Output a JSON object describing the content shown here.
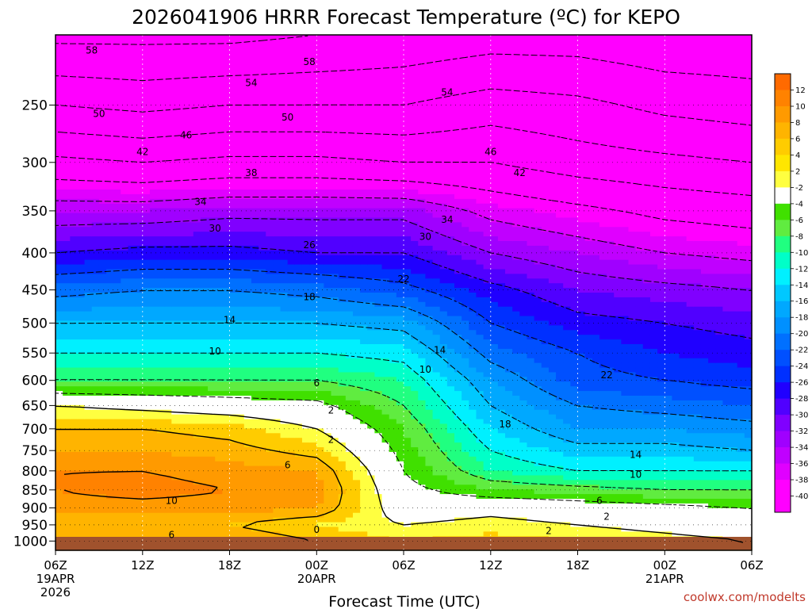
{
  "chart_data": {
    "type": "heatmap",
    "title": "2026041906 HRRR Forecast Temperature (ºC) for KEPO",
    "xlabel": "Forecast Time (UTC)",
    "ylabel": "",
    "credit": "coolwx.com/modelts",
    "y_scale": "pressure (hPa), inverted",
    "ylim": [
      1030,
      200
    ],
    "y_ticks": [
      250,
      300,
      350,
      400,
      450,
      500,
      550,
      600,
      650,
      700,
      750,
      800,
      850,
      900,
      950,
      1000
    ],
    "x_range_hours": [
      0,
      48
    ],
    "x_ticks": [
      {
        "hour": 0,
        "label": "06Z",
        "date": "19APR",
        "year": "2026"
      },
      {
        "hour": 6,
        "label": "12Z",
        "date": "",
        "year": ""
      },
      {
        "hour": 12,
        "label": "18Z",
        "date": "",
        "year": ""
      },
      {
        "hour": 18,
        "label": "00Z",
        "date": "20APR",
        "year": ""
      },
      {
        "hour": 24,
        "label": "06Z",
        "date": "",
        "year": ""
      },
      {
        "hour": 30,
        "label": "12Z",
        "date": "",
        "year": ""
      },
      {
        "hour": 36,
        "label": "18Z",
        "date": "",
        "year": ""
      },
      {
        "hour": 42,
        "label": "00Z",
        "date": "21APR",
        "year": ""
      },
      {
        "hour": 48,
        "label": "06Z",
        "date": "",
        "year": ""
      }
    ],
    "colorbar": {
      "labels": [
        "12",
        "10",
        "8",
        "6",
        "4",
        "2",
        "-2",
        "-4",
        "-6",
        "-8",
        "-10",
        "-12",
        "-14",
        "-16",
        "-18",
        "-20",
        "-22",
        "-24",
        "-26",
        "-28",
        "-30",
        "-32",
        "-34",
        "-36",
        "-38",
        "-40"
      ],
      "colors": [
        "#ff6a00",
        "#ff8200",
        "#ff9a00",
        "#ffb400",
        "#ffcc00",
        "#ffe600",
        "#ffff40",
        "#ffffff",
        "#40e000",
        "#60ec40",
        "#20ff80",
        "#00ffc8",
        "#00f0ff",
        "#00c8ff",
        "#00a8ff",
        "#0090ff",
        "#0070ff",
        "#0050ff",
        "#0030ff",
        "#2000ff",
        "#5000ff",
        "#8000ff",
        "#a000ff",
        "#c000ff",
        "#e000ff",
        "#ff00ff",
        "#ff00ff"
      ]
    },
    "temperature_isotherms": [
      {
        "p": 220,
        "points": [
          [
            0,
            -58
          ],
          [
            12,
            -58
          ],
          [
            24,
            -57
          ],
          [
            36,
            -57
          ],
          [
            48,
            -56
          ]
        ]
      },
      {
        "hour_profiles": [
          {
            "hour": 0,
            "t": [
              [
                200,
                -59
              ],
              [
                250,
                -50
              ],
              [
                300,
                -41
              ],
              [
                350,
                -32
              ],
              [
                400,
                -26
              ],
              [
                450,
                -19
              ],
              [
                500,
                -14
              ],
              [
                550,
                -10
              ],
              [
                600,
                -6
              ],
              [
                650,
                2
              ],
              [
                700,
                6
              ],
              [
                750,
                8
              ],
              [
                800,
                10
              ],
              [
                850,
                10
              ],
              [
                900,
                9
              ],
              [
                950,
                6
              ],
              [
                1000,
                8
              ]
            ]
          },
          {
            "hour": 6,
            "t": [
              [
                200,
                -59
              ],
              [
                250,
                -51
              ],
              [
                300,
                -42
              ],
              [
                350,
                -32
              ],
              [
                400,
                -25
              ],
              [
                450,
                -18
              ],
              [
                500,
                -14
              ],
              [
                550,
                -10
              ],
              [
                600,
                -6
              ],
              [
                650,
                1
              ],
              [
                700,
                6
              ],
              [
                750,
                8
              ],
              [
                800,
                10
              ],
              [
                850,
                11
              ],
              [
                900,
                9
              ],
              [
                950,
                6
              ],
              [
                1000,
                8
              ]
            ]
          },
          {
            "hour": 12,
            "t": [
              [
                200,
                -59
              ],
              [
                250,
                -50
              ],
              [
                300,
                -41
              ],
              [
                350,
                -31
              ],
              [
                400,
                -25
              ],
              [
                450,
                -18
              ],
              [
                500,
                -14
              ],
              [
                550,
                -10
              ],
              [
                600,
                -6
              ],
              [
                650,
                0
              ],
              [
                700,
                5
              ],
              [
                750,
                7
              ],
              [
                800,
                9
              ],
              [
                850,
                10
              ],
              [
                900,
                9
              ],
              [
                950,
                6
              ],
              [
                1000,
                8
              ]
            ]
          },
          {
            "hour": 18,
            "t": [
              [
                200,
                -58
              ],
              [
                250,
                -50
              ],
              [
                300,
                -41
              ],
              [
                350,
                -31
              ],
              [
                400,
                -26
              ],
              [
                450,
                -19
              ],
              [
                500,
                -14
              ],
              [
                550,
                -10
              ],
              [
                600,
                -6
              ],
              [
                650,
                -1
              ],
              [
                700,
                2
              ],
              [
                750,
                5
              ],
              [
                800,
                8
              ],
              [
                850,
                9
              ],
              [
                900,
                8
              ],
              [
                950,
                4
              ],
              [
                1000,
                6
              ]
            ]
          },
          {
            "hour": 24,
            "t": [
              [
                200,
                -57
              ],
              [
                250,
                -50
              ],
              [
                300,
                -42
              ],
              [
                350,
                -31
              ],
              [
                400,
                -26
              ],
              [
                450,
                -21
              ],
              [
                500,
                -15
              ],
              [
                550,
                -11
              ],
              [
                600,
                -8
              ],
              [
                650,
                -6
              ],
              [
                700,
                -4
              ],
              [
                750,
                -3
              ],
              [
                800,
                -2
              ],
              [
                850,
                -1
              ],
              [
                900,
                0
              ],
              [
                950,
                2
              ],
              [
                1000,
                4
              ]
            ]
          },
          {
            "hour": 30,
            "t": [
              [
                200,
                -56
              ],
              [
                250,
                -48
              ],
              [
                300,
                -42
              ],
              [
                350,
                -35
              ],
              [
                400,
                -30
              ],
              [
                450,
                -25
              ],
              [
                500,
                -22
              ],
              [
                550,
                -19
              ],
              [
                600,
                -16
              ],
              [
                650,
                -14
              ],
              [
                700,
                -12
              ],
              [
                750,
                -10
              ],
              [
                800,
                -8
              ],
              [
                850,
                -4
              ],
              [
                900,
                1
              ],
              [
                950,
                3
              ],
              [
                1000,
                5
              ]
            ]
          },
          {
            "hour": 36,
            "t": [
              [
                200,
                -56
              ],
              [
                250,
                -49
              ],
              [
                300,
                -44
              ],
              [
                350,
                -37
              ],
              [
                400,
                -32
              ],
              [
                450,
                -28
              ],
              [
                500,
                -25
              ],
              [
                550,
                -22
              ],
              [
                600,
                -21
              ],
              [
                650,
                -18
              ],
              [
                700,
                -16
              ],
              [
                750,
                -13
              ],
              [
                800,
                -10
              ],
              [
                850,
                -5
              ],
              [
                900,
                0
              ],
              [
                950,
                2
              ],
              [
                1000,
                4
              ]
            ]
          },
          {
            "hour": 42,
            "t": [
              [
                200,
                -57
              ],
              [
                250,
                -51
              ],
              [
                300,
                -45
              ],
              [
                350,
                -39
              ],
              [
                400,
                -34
              ],
              [
                450,
                -29
              ],
              [
                500,
                -26
              ],
              [
                550,
                -24
              ],
              [
                600,
                -22
              ],
              [
                650,
                -19
              ],
              [
                700,
                -16
              ],
              [
                750,
                -13
              ],
              [
                800,
                -10
              ],
              [
                850,
                -6
              ],
              [
                900,
                -1
              ],
              [
                950,
                1
              ],
              [
                1000,
                3
              ]
            ]
          },
          {
            "hour": 48,
            "t": [
              [
                200,
                -57
              ],
              [
                250,
                -52
              ],
              [
                300,
                -46
              ],
              [
                350,
                -40
              ],
              [
                400,
                -35
              ],
              [
                450,
                -30
              ],
              [
                500,
                -27
              ],
              [
                550,
                -25
              ],
              [
                600,
                -23
              ],
              [
                650,
                -20
              ],
              [
                700,
                -17
              ],
              [
                750,
                -14
              ],
              [
                800,
                -10
              ],
              [
                850,
                -6
              ],
              [
                900,
                -2
              ],
              [
                950,
                0
              ],
              [
                1000,
                2
              ]
            ]
          }
        ]
      }
    ],
    "contour_labels": [
      {
        "text": "58",
        "hour": 2.5,
        "p": 210
      },
      {
        "text": "58",
        "hour": 17.5,
        "p": 218
      },
      {
        "text": "54",
        "hour": 13.5,
        "p": 233
      },
      {
        "text": "54",
        "hour": 27,
        "p": 240
      },
      {
        "text": "50",
        "hour": 3,
        "p": 257
      },
      {
        "text": "50",
        "hour": 16,
        "p": 260
      },
      {
        "text": "46",
        "hour": 9,
        "p": 275
      },
      {
        "text": "46",
        "hour": 30,
        "p": 290
      },
      {
        "text": "42",
        "hour": 6,
        "p": 290
      },
      {
        "text": "42",
        "hour": 32,
        "p": 310
      },
      {
        "text": "38",
        "hour": 13.5,
        "p": 310
      },
      {
        "text": "34",
        "hour": 10,
        "p": 340
      },
      {
        "text": "34",
        "hour": 27,
        "p": 360
      },
      {
        "text": "30",
        "hour": 11,
        "p": 370
      },
      {
        "text": "30",
        "hour": 25.5,
        "p": 380
      },
      {
        "text": "26",
        "hour": 17.5,
        "p": 390
      },
      {
        "text": "22",
        "hour": 24,
        "p": 435
      },
      {
        "text": "22",
        "hour": 38,
        "p": 590
      },
      {
        "text": "18",
        "hour": 17.5,
        "p": 460
      },
      {
        "text": "18",
        "hour": 31,
        "p": 690
      },
      {
        "text": "14",
        "hour": 12,
        "p": 495
      },
      {
        "text": "14",
        "hour": 26.5,
        "p": 545
      },
      {
        "text": "14",
        "hour": 40,
        "p": 760
      },
      {
        "text": "10",
        "hour": 11,
        "p": 547
      },
      {
        "text": "10",
        "hour": 25.5,
        "p": 580
      },
      {
        "text": "10",
        "hour": 40,
        "p": 810
      },
      {
        "text": "10",
        "hour": 8,
        "p": 880
      },
      {
        "text": "6",
        "hour": 18,
        "p": 605
      },
      {
        "text": "6",
        "hour": 16,
        "p": 785
      },
      {
        "text": "6",
        "hour": 8,
        "p": 980
      },
      {
        "text": "6",
        "hour": 37.5,
        "p": 880
      },
      {
        "text": "2",
        "hour": 19,
        "p": 660
      },
      {
        "text": "2",
        "hour": 19,
        "p": 725
      },
      {
        "text": "2",
        "hour": 38,
        "p": 925
      },
      {
        "text": "2",
        "hour": 34,
        "p": 968
      },
      {
        "text": "0",
        "hour": 18,
        "p": 965
      }
    ]
  }
}
